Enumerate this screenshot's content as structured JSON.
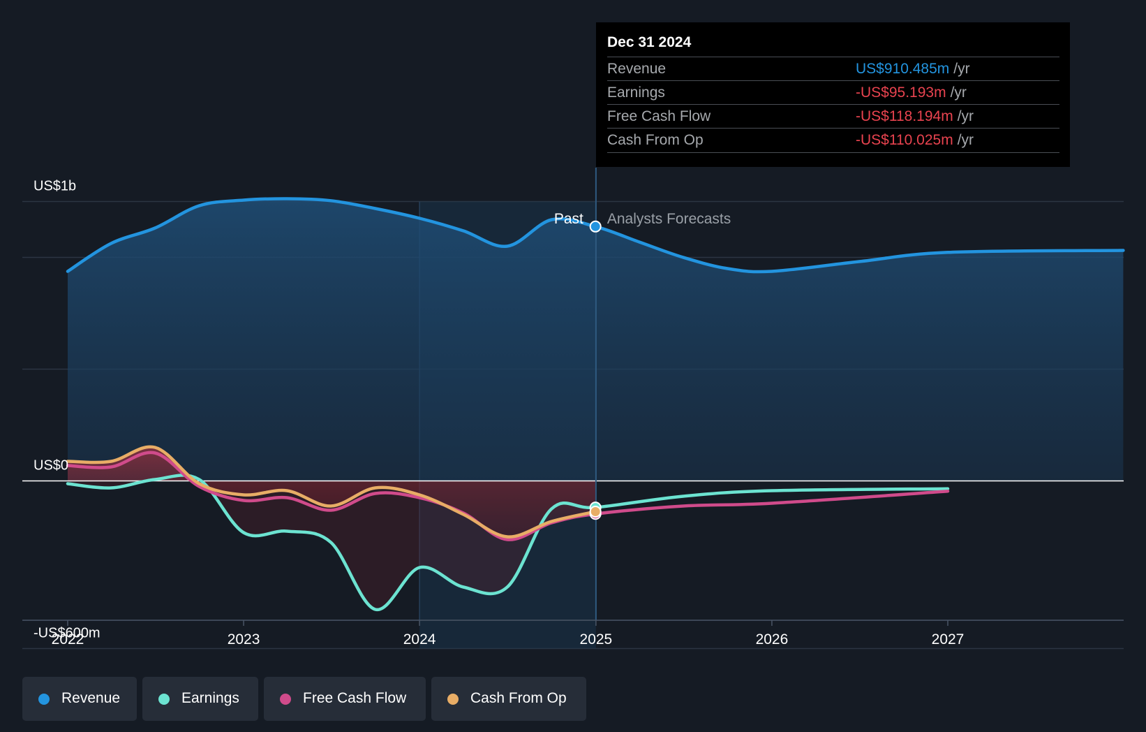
{
  "chart_data": {
    "type": "line",
    "x_ticks": [
      "2022",
      "2023",
      "2024",
      "2025",
      "2026",
      "2027"
    ],
    "y_tick_labels": [
      "US$1b",
      "US$0",
      "-US$600m"
    ],
    "ylim": [
      -600,
      1000
    ],
    "y_unit": "US$ millions",
    "split_labels": {
      "past": "Past",
      "forecast": "Analysts Forecasts"
    },
    "series": [
      {
        "name": "Revenue",
        "color": "#2394df",
        "points": [
          [
            "2022-01-01",
            750
          ],
          [
            "2022-04-01",
            850
          ],
          [
            "2022-07-01",
            905
          ],
          [
            "2022-10-01",
            985
          ],
          [
            "2023-01-01",
            1005
          ],
          [
            "2023-04-01",
            1010
          ],
          [
            "2023-07-01",
            1003
          ],
          [
            "2023-10-01",
            975
          ],
          [
            "2024-01-01",
            940
          ],
          [
            "2024-04-01",
            895
          ],
          [
            "2024-07-01",
            840
          ],
          [
            "2024-10-01",
            935
          ],
          [
            "2024-12-31",
            910.485
          ],
          [
            "2025-04-01",
            855
          ],
          [
            "2025-07-01",
            800
          ],
          [
            "2025-10-01",
            760
          ],
          [
            "2026-01-01",
            750
          ],
          [
            "2026-07-01",
            785
          ],
          [
            "2027-01-01",
            818
          ],
          [
            "2027-12-31",
            825
          ]
        ]
      },
      {
        "name": "Earnings",
        "color": "#6ce3d1",
        "points": [
          [
            "2022-01-01",
            -10
          ],
          [
            "2022-04-01",
            -25
          ],
          [
            "2022-07-01",
            5
          ],
          [
            "2022-10-01",
            5
          ],
          [
            "2023-01-01",
            -185
          ],
          [
            "2023-04-01",
            -180
          ],
          [
            "2023-07-01",
            -220
          ],
          [
            "2023-10-01",
            -460
          ],
          [
            "2024-01-01",
            -310
          ],
          [
            "2024-04-01",
            -380
          ],
          [
            "2024-07-01",
            -380
          ],
          [
            "2024-10-01",
            -100
          ],
          [
            "2024-12-31",
            -95.193
          ],
          [
            "2025-07-01",
            -55
          ],
          [
            "2026-01-01",
            -35
          ],
          [
            "2027-01-01",
            -28
          ]
        ]
      },
      {
        "name": "Free Cash Flow",
        "color": "#d04b8b",
        "points": [
          [
            "2022-01-01",
            55
          ],
          [
            "2022-04-01",
            50
          ],
          [
            "2022-07-01",
            100
          ],
          [
            "2022-10-01",
            -20
          ],
          [
            "2023-01-01",
            -70
          ],
          [
            "2023-04-01",
            -60
          ],
          [
            "2023-07-01",
            -105
          ],
          [
            "2023-10-01",
            -45
          ],
          [
            "2024-01-01",
            -60
          ],
          [
            "2024-04-01",
            -115
          ],
          [
            "2024-07-01",
            -210
          ],
          [
            "2024-10-01",
            -150
          ],
          [
            "2024-12-31",
            -118.194
          ],
          [
            "2025-07-01",
            -90
          ],
          [
            "2026-01-01",
            -80
          ],
          [
            "2027-01-01",
            -37
          ]
        ]
      },
      {
        "name": "Cash From Op",
        "color": "#e8ad66",
        "points": [
          [
            "2022-01-01",
            70
          ],
          [
            "2022-04-01",
            70
          ],
          [
            "2022-07-01",
            120
          ],
          [
            "2022-10-01",
            -10
          ],
          [
            "2023-01-01",
            -50
          ],
          [
            "2023-04-01",
            -35
          ],
          [
            "2023-07-01",
            -90
          ],
          [
            "2023-10-01",
            -25
          ],
          [
            "2024-01-01",
            -50
          ],
          [
            "2024-04-01",
            -120
          ],
          [
            "2024-07-01",
            -200
          ],
          [
            "2024-10-01",
            -145
          ],
          [
            "2024-12-31",
            -110.025
          ]
        ]
      }
    ],
    "tooltip": {
      "date": "Dec 31 2024",
      "rows": [
        {
          "label": "Revenue",
          "value": "US$910.485m",
          "unit": "/yr",
          "color": "#2394df"
        },
        {
          "label": "Earnings",
          "value": "-US$95.193m",
          "unit": "/yr",
          "color": "#e8434f"
        },
        {
          "label": "Free Cash Flow",
          "value": "-US$118.194m",
          "unit": "/yr",
          "color": "#e8434f"
        },
        {
          "label": "Cash From Op",
          "value": "-US$110.025m",
          "unit": "/yr",
          "color": "#e8434f"
        }
      ]
    },
    "legend": [
      {
        "label": "Revenue",
        "color": "#2394df"
      },
      {
        "label": "Earnings",
        "color": "#6ce3d1"
      },
      {
        "label": "Free Cash Flow",
        "color": "#d04b8b"
      },
      {
        "label": "Cash From Op",
        "color": "#e8ad66"
      }
    ]
  }
}
